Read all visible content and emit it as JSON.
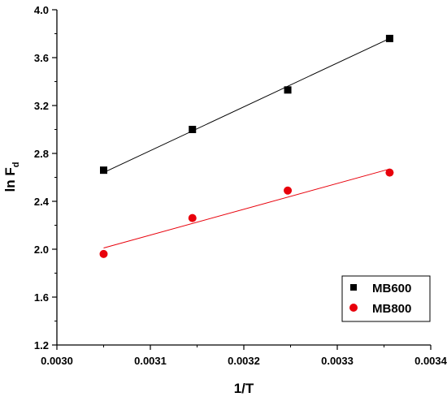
{
  "chart_data": {
    "type": "scatter",
    "xlabel": "1/T",
    "ylabel": {
      "main": "ln F",
      "sub": "d"
    },
    "xlim": [
      0.003,
      0.0034
    ],
    "ylim": [
      1.2,
      4.0
    ],
    "x_ticks": [
      "0.0030",
      "0.0031",
      "0.0032",
      "0.0033",
      "0.0034"
    ],
    "y_ticks": [
      "1.2",
      "1.6",
      "2.0",
      "2.4",
      "2.8",
      "3.2",
      "3.6",
      "4.0"
    ],
    "legend_position": "bottom-right",
    "series": [
      {
        "name": "MB600",
        "color": "#000000",
        "marker": "square",
        "x": [
          0.00305,
          0.003145,
          0.003247,
          0.003356
        ],
        "y": [
          2.66,
          3.0,
          3.33,
          3.76
        ],
        "fit_line": {
          "x": [
            0.00305,
            0.003356
          ],
          "y": [
            2.64,
            3.76
          ]
        }
      },
      {
        "name": "MB800",
        "color": "#e8000b",
        "marker": "circle",
        "x": [
          0.00305,
          0.003145,
          0.003247,
          0.003356
        ],
        "y": [
          1.96,
          2.26,
          2.49,
          2.64
        ],
        "fit_line": {
          "x": [
            0.00305,
            0.003356
          ],
          "y": [
            2.01,
            2.67
          ]
        }
      }
    ]
  }
}
